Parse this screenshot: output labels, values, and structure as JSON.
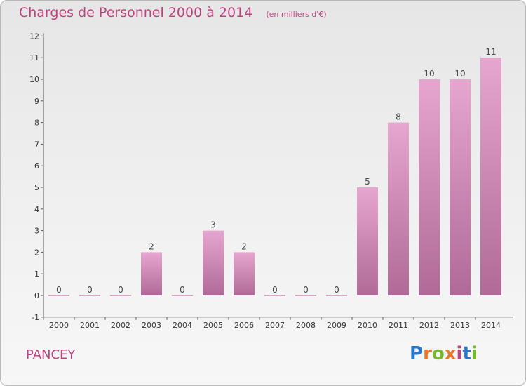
{
  "header": {
    "title": "Charges de Personnel 2000 à 2014",
    "subtitle": "(en milliers d'€)"
  },
  "footer": {
    "commune": "PANCEY",
    "logo_text": "Proxiti",
    "logo_colors": [
      "#2b78c9",
      "#e8782a",
      "#77b82e",
      "#e8782a",
      "#c0417f",
      "#2b78c9",
      "#77b82e"
    ]
  },
  "colors": {
    "bar_top": "#e6a6cf",
    "bar_bottom": "#b06a97",
    "title": "#c0417f",
    "zero_bar": "#d8a7c5"
  },
  "chart_data": {
    "type": "bar",
    "categories": [
      "2000",
      "2001",
      "2002",
      "2003",
      "2004",
      "2005",
      "2006",
      "2007",
      "2008",
      "2009",
      "2010",
      "2011",
      "2012",
      "2013",
      "2014"
    ],
    "values": [
      0,
      0,
      0,
      2,
      0,
      3,
      2,
      0,
      0,
      0,
      5,
      8,
      10,
      10,
      11
    ],
    "data_labels": [
      "0",
      "0",
      "0",
      "2",
      "0",
      "3",
      "2",
      "0",
      "0",
      "0",
      "5",
      "8",
      "10",
      "10",
      "11"
    ],
    "y_ticks": [
      -1,
      0,
      1,
      2,
      3,
      4,
      5,
      6,
      7,
      8,
      9,
      10,
      11,
      12
    ],
    "y_tick_labels": [
      "-1",
      "0",
      "1",
      "2",
      "3",
      "4",
      "5",
      "6",
      "7",
      "8",
      "9",
      "10",
      "11",
      "12"
    ],
    "ylim": [
      -1,
      12
    ],
    "grid": false,
    "legend": "none"
  }
}
